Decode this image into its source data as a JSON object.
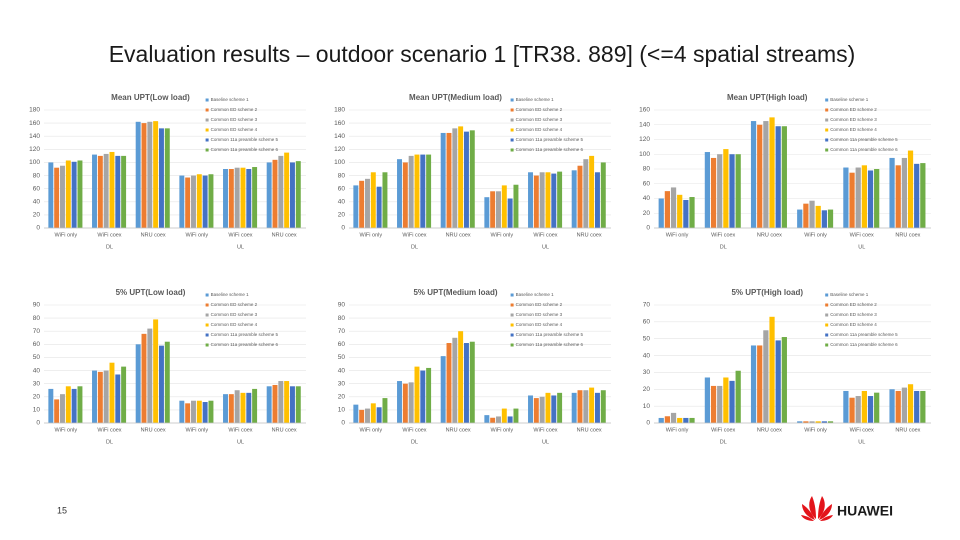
{
  "title": "Evaluation results – outdoor scenario 1 [TR38. 889] (<=4 spatial streams)",
  "page_number": "15",
  "logo": "HUAWEI",
  "chart_data": [
    {
      "type": "bar",
      "title": "Mean UPT(Low load)",
      "categories": [
        "WiFi only",
        "WiFi coex",
        "NRU coex",
        "WiFi only",
        "WiFi coex",
        "NRU coex"
      ],
      "x_groups": [
        "DL",
        "UL"
      ],
      "ylim": [
        0,
        180
      ],
      "yticks": [
        0,
        20,
        40,
        60,
        80,
        100,
        120,
        140,
        160,
        180
      ],
      "grid": true,
      "series": [
        {
          "name": "Baseline scheme 1",
          "color": "#5b9bd5",
          "values": [
            100,
            112,
            162,
            80,
            90,
            100
          ]
        },
        {
          "name": "Common ED scheme 2",
          "color": "#ed7d31",
          "values": [
            92,
            110,
            160,
            77,
            90,
            104
          ]
        },
        {
          "name": "Common ED scheme 3",
          "color": "#a5a5a5",
          "values": [
            95,
            113,
            162,
            80,
            92,
            110
          ]
        },
        {
          "name": "Common ED scheme 4",
          "color": "#ffc000",
          "values": [
            103,
            116,
            163,
            82,
            92,
            115
          ]
        },
        {
          "name": "Common 11a preamble scheme 5",
          "color": "#4472c4",
          "values": [
            101,
            110,
            152,
            80,
            90,
            100
          ]
        },
        {
          "name": "Common 11a preamble scheme 6",
          "color": "#70ad47",
          "values": [
            103,
            110,
            152,
            82,
            93,
            102
          ]
        }
      ]
    },
    {
      "type": "bar",
      "title": "Mean UPT(Medium load)",
      "categories": [
        "WiFi only",
        "WiFi coex",
        "NRU coex",
        "WiFi only",
        "WiFi coex",
        "NRU coex"
      ],
      "x_groups": [
        "DL",
        "UL"
      ],
      "ylim": [
        0,
        180
      ],
      "yticks": [
        0,
        20,
        40,
        60,
        80,
        100,
        120,
        140,
        160,
        180
      ],
      "grid": true,
      "series": [
        {
          "name": "Baseline scheme 1",
          "color": "#5b9bd5",
          "values": [
            65,
            105,
            145,
            47,
            85,
            88
          ]
        },
        {
          "name": "Common ED scheme 2",
          "color": "#ed7d31",
          "values": [
            72,
            100,
            145,
            56,
            80,
            95
          ]
        },
        {
          "name": "Common ED scheme 3",
          "color": "#a5a5a5",
          "values": [
            75,
            110,
            152,
            56,
            85,
            105
          ]
        },
        {
          "name": "Common ED scheme 4",
          "color": "#ffc000",
          "values": [
            85,
            112,
            155,
            65,
            85,
            110
          ]
        },
        {
          "name": "Common 11a preamble scheme 5",
          "color": "#4472c4",
          "values": [
            63,
            112,
            147,
            45,
            83,
            85
          ]
        },
        {
          "name": "Common 11a preamble scheme 6",
          "color": "#70ad47",
          "values": [
            85,
            112,
            149,
            66,
            86,
            100
          ]
        }
      ]
    },
    {
      "type": "bar",
      "title": "Mean UPT(High load)",
      "categories": [
        "WiFi only",
        "WiFi coex",
        "NRU coex",
        "WiFi only",
        "WiFi coex",
        "NRU coex"
      ],
      "x_groups": [
        "DL",
        "UL"
      ],
      "ylim": [
        0,
        160
      ],
      "yticks": [
        0,
        20,
        40,
        60,
        80,
        100,
        120,
        140,
        160
      ],
      "grid": true,
      "series": [
        {
          "name": "Baseline scheme 1",
          "color": "#5b9bd5",
          "values": [
            40,
            103,
            145,
            25,
            82,
            95
          ]
        },
        {
          "name": "Common ED scheme 2",
          "color": "#ed7d31",
          "values": [
            50,
            95,
            140,
            33,
            75,
            85
          ]
        },
        {
          "name": "Common ED scheme 3",
          "color": "#a5a5a5",
          "values": [
            55,
            100,
            145,
            37,
            82,
            95
          ]
        },
        {
          "name": "Common ED scheme 4",
          "color": "#ffc000",
          "values": [
            45,
            107,
            150,
            30,
            85,
            105
          ]
        },
        {
          "name": "Common 11a preamble scheme 5",
          "color": "#4472c4",
          "values": [
            38,
            100,
            138,
            24,
            78,
            87
          ]
        },
        {
          "name": "Common 11a preamble scheme 6",
          "color": "#70ad47",
          "values": [
            42,
            100,
            138,
            25,
            80,
            88
          ]
        }
      ]
    },
    {
      "type": "bar",
      "title": "5% UPT(Low load)",
      "categories": [
        "WiFi only",
        "WiFi coex",
        "NRU coex",
        "WiFi only",
        "WiFi coex",
        "NRU coex"
      ],
      "x_groups": [
        "DL",
        "UL"
      ],
      "ylim": [
        0,
        90
      ],
      "yticks": [
        0,
        10,
        20,
        30,
        40,
        50,
        60,
        70,
        80,
        90
      ],
      "grid": true,
      "series": [
        {
          "name": "Baseline scheme 1",
          "color": "#5b9bd5",
          "values": [
            26,
            40,
            60,
            17,
            22,
            28
          ]
        },
        {
          "name": "Common ED scheme 2",
          "color": "#ed7d31",
          "values": [
            18,
            39,
            68,
            15,
            22,
            29
          ]
        },
        {
          "name": "Common ED scheme 3",
          "color": "#a5a5a5",
          "values": [
            22,
            40,
            72,
            17,
            25,
            32
          ]
        },
        {
          "name": "Common ED scheme 4",
          "color": "#ffc000",
          "values": [
            28,
            46,
            79,
            17,
            23,
            32
          ]
        },
        {
          "name": "Common 11a preamble scheme 5",
          "color": "#4472c4",
          "values": [
            26,
            37,
            59,
            16,
            23,
            28
          ]
        },
        {
          "name": "Common 11a preamble scheme 6",
          "color": "#70ad47",
          "values": [
            28,
            43,
            62,
            17,
            26,
            28
          ]
        }
      ]
    },
    {
      "type": "bar",
      "title": "5% UPT(Medium load)",
      "categories": [
        "WiFi only",
        "WiFi coex",
        "NRU coex",
        "WiFi only",
        "WiFi coex",
        "NRU coex"
      ],
      "x_groups": [
        "DL",
        "UL"
      ],
      "ylim": [
        0,
        90
      ],
      "yticks": [
        0,
        10,
        20,
        30,
        40,
        50,
        60,
        70,
        80,
        90
      ],
      "grid": true,
      "series": [
        {
          "name": "Baseline scheme 1",
          "color": "#5b9bd5",
          "values": [
            14,
            32,
            51,
            6,
            21,
            23
          ]
        },
        {
          "name": "Common ED scheme 2",
          "color": "#ed7d31",
          "values": [
            10,
            30,
            61,
            4,
            19,
            25
          ]
        },
        {
          "name": "Common ED scheme 3",
          "color": "#a5a5a5",
          "values": [
            11,
            31,
            65,
            5,
            20,
            25
          ]
        },
        {
          "name": "Common ED scheme 4",
          "color": "#ffc000",
          "values": [
            15,
            43,
            70,
            11,
            23,
            27
          ]
        },
        {
          "name": "Common 11a preamble scheme 5",
          "color": "#4472c4",
          "values": [
            12,
            40,
            61,
            5,
            21,
            23
          ]
        },
        {
          "name": "Common 11a preamble scheme 6",
          "color": "#70ad47",
          "values": [
            19,
            42,
            62,
            11,
            23,
            25
          ]
        }
      ]
    },
    {
      "type": "bar",
      "title": "5% UPT(High load)",
      "categories": [
        "WiFi only",
        "WiFi coex",
        "NRU coex",
        "WiFi only",
        "WiFi coex",
        "NRU coex"
      ],
      "x_groups": [
        "DL",
        "UL"
      ],
      "ylim": [
        0,
        70
      ],
      "yticks": [
        0,
        10,
        20,
        30,
        40,
        50,
        60,
        70
      ],
      "grid": true,
      "series": [
        {
          "name": "Baseline scheme 1",
          "color": "#5b9bd5",
          "values": [
            3,
            27,
            46,
            1,
            19,
            20
          ]
        },
        {
          "name": "Common ED scheme 2",
          "color": "#ed7d31",
          "values": [
            4,
            22,
            46,
            1,
            15,
            19
          ]
        },
        {
          "name": "Common ED scheme 3",
          "color": "#a5a5a5",
          "values": [
            6,
            22,
            55,
            1,
            16,
            21
          ]
        },
        {
          "name": "Common ED scheme 4",
          "color": "#ffc000",
          "values": [
            3,
            27,
            63,
            1,
            19,
            23
          ]
        },
        {
          "name": "Common 11a preamble scheme 5",
          "color": "#4472c4",
          "values": [
            3,
            25,
            49,
            1,
            16,
            19
          ]
        },
        {
          "name": "Common 11a preamble scheme 6",
          "color": "#70ad47",
          "values": [
            3,
            31,
            51,
            1,
            18,
            19
          ]
        }
      ]
    }
  ]
}
